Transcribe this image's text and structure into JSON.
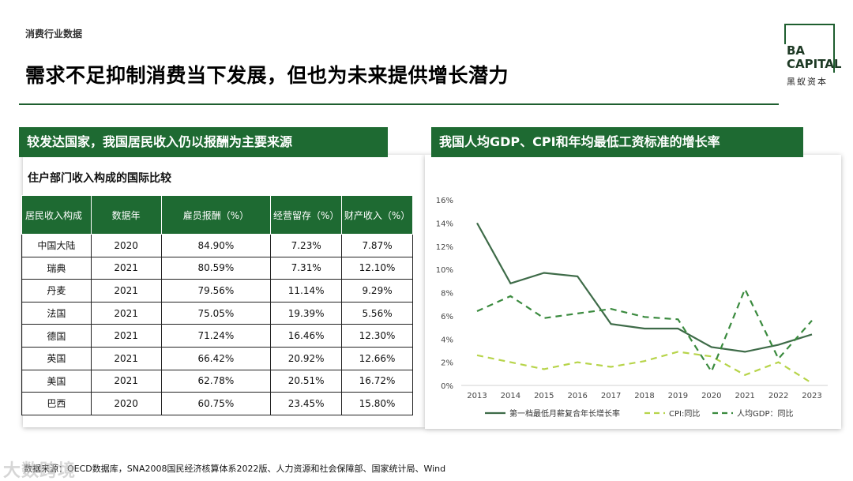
{
  "header": {
    "category": "消费行业数据",
    "headline": "需求不足抑制消费当下发展，但也为未来提供增长潜力"
  },
  "logo": {
    "line1": "BA",
    "line2": "CAPITAL",
    "line3": "黑蚁资本"
  },
  "left_panel": {
    "banner": "较发达国家，我国居民收入仍以报酬为主要来源",
    "subtitle": "住户部门收入构成的国际比较",
    "columns": [
      "居民收入构成",
      "数据年",
      "雇员报酬（%）",
      "经营留存（%）",
      "财产收入（%）"
    ],
    "rows": [
      [
        "中国大陆",
        "2020",
        "84.90%",
        "7.23%",
        "7.87%"
      ],
      [
        "瑞典",
        "2021",
        "80.59%",
        "7.31%",
        "12.10%"
      ],
      [
        "丹麦",
        "2021",
        "79.56%",
        "11.14%",
        "9.29%"
      ],
      [
        "法国",
        "2021",
        "75.05%",
        "19.39%",
        "5.56%"
      ],
      [
        "德国",
        "2021",
        "71.24%",
        "16.46%",
        "12.30%"
      ],
      [
        "英国",
        "2021",
        "66.42%",
        "20.92%",
        "12.66%"
      ],
      [
        "美国",
        "2021",
        "62.78%",
        "20.51%",
        "16.72%"
      ],
      [
        "巴西",
        "2020",
        "60.75%",
        "23.45%",
        "15.80%"
      ]
    ]
  },
  "right_panel": {
    "banner": "我国人均GDP、CPI和年均最低工资标准的增长率"
  },
  "chart_data": {
    "type": "line",
    "title": "我国人均GDP、CPI和年均最低工资标准的增长率",
    "x": [
      "2013",
      "2014",
      "2015",
      "2016",
      "2017",
      "2018",
      "2019",
      "2020",
      "2021",
      "2022",
      "2023"
    ],
    "ylim": [
      0,
      16
    ],
    "yticks": [
      "0%",
      "2%",
      "4%",
      "6%",
      "8%",
      "10%",
      "12%",
      "14%",
      "16%"
    ],
    "legend_position": "bottom",
    "series": [
      {
        "name": "第一档最低月薪复合年长增长率",
        "values": [
          14.0,
          8.8,
          9.7,
          9.4,
          5.3,
          4.9,
          4.9,
          3.3,
          2.9,
          3.5,
          4.4
        ],
        "color": "#3e6b48",
        "style": "solid"
      },
      {
        "name": "CPI:同比",
        "values": [
          2.6,
          2.0,
          1.4,
          2.0,
          1.6,
          2.1,
          2.9,
          2.5,
          0.9,
          2.0,
          0.2
        ],
        "color": "#b7d44a",
        "style": "dashed"
      },
      {
        "name": "人均GDP：同比",
        "values": [
          6.4,
          7.7,
          5.8,
          6.2,
          6.6,
          5.9,
          5.7,
          1.2,
          8.3,
          2.3,
          5.6
        ],
        "color": "#3a8a3e",
        "style": "dashed"
      }
    ]
  },
  "footer": {
    "source": "数据来源：OECD数据库，SNA2008国民经济核算体系2022版、人力资源和社会保障部、国家统计局、Wind"
  },
  "watermark": {
    "text": "大数跨境"
  }
}
